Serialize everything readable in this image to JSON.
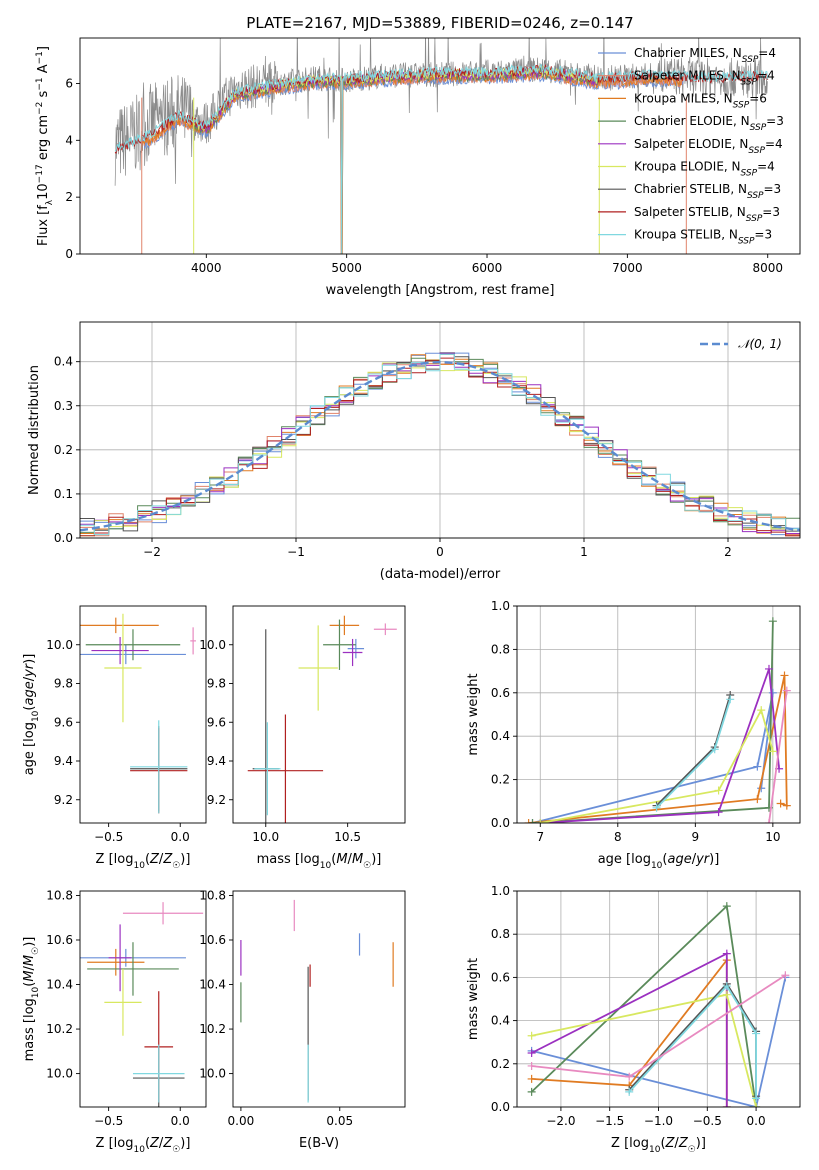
{
  "title": "PLATE=2167, MJD=53889, FIBERID=0246, z=0.147",
  "colors": {
    "chabrier_miles": "#6a8fd8",
    "salpeter_miles": "#e0836a",
    "kroupa_miles": "#e07b22",
    "chabrier_elodie": "#5a8a5a",
    "salpeter_elodie": "#9b30c0",
    "kroupa_elodie": "#d8e860",
    "chabrier_stelib": "#555555",
    "salpeter_stelib": "#b02020",
    "kroupa_stelib": "#80d8e0",
    "pink": "#e88ac0",
    "grey": "#8a8a8a",
    "normal": "#5b8bd0"
  },
  "legend": {
    "spectrum": [
      {
        "label": "Chabrier MILES, N",
        "sub": "SSP",
        "tail": "=4",
        "color": "#6a8fd8"
      },
      {
        "label": "Salpeter MILES, N",
        "sub": "SSP",
        "tail": "=4",
        "color": "#e0836a"
      },
      {
        "label": "Kroupa MILES, N",
        "sub": "SSP",
        "tail": "=6",
        "color": "#e07b22"
      },
      {
        "label": "Chabrier ELODIE, N",
        "sub": "SSP",
        "tail": "=3",
        "color": "#5a8a5a"
      },
      {
        "label": "Salpeter ELODIE, N",
        "sub": "SSP",
        "tail": "=4",
        "color": "#9b30c0"
      },
      {
        "label": "Kroupa ELODIE, N",
        "sub": "SSP",
        "tail": "=4",
        "color": "#d8e860"
      },
      {
        "label": "Chabrier STELIB, N",
        "sub": "SSP",
        "tail": "=3",
        "color": "#555555"
      },
      {
        "label": "Salpeter STELIB, N",
        "sub": "SSP",
        "tail": "=3",
        "color": "#b02020"
      },
      {
        "label": "Kroupa STELIB, N",
        "sub": "SSP",
        "tail": "=3",
        "color": "#80d8e0"
      }
    ],
    "histogram": "𝒩(0, 1)"
  },
  "chart_data": [
    {
      "id": "spectrum",
      "type": "line",
      "xlabel": "wavelength [Angstrom, rest frame]",
      "ylabel": "Flux [f_λ 10^-17 erg cm^-2 s^-1 A^-1]",
      "xlim": [
        3100,
        8230
      ],
      "ylim": [
        0,
        7.6
      ],
      "xticks": [
        4000,
        5000,
        6000,
        7000,
        8000
      ],
      "yticks": [
        0,
        2,
        4,
        6
      ],
      "series": [
        {
          "name": "data",
          "color": "#8a8a8a",
          "x": [
            3350,
            3500,
            3600,
            3800,
            4000,
            4200,
            4500,
            4800,
            5000,
            5300,
            5600,
            6000,
            6400,
            6800,
            7200,
            7600,
            8000
          ],
          "y": [
            3.8,
            4.2,
            4.6,
            5.0,
            4.6,
            5.8,
            6.0,
            6.2,
            6.1,
            6.3,
            6.3,
            6.4,
            6.5,
            6.2,
            6.3,
            6.2,
            6.2
          ]
        },
        {
          "name": "model",
          "color": "#80d8e0",
          "x": [
            3350,
            3500,
            3600,
            3800,
            4000,
            4200,
            4500,
            4800,
            5000,
            5300,
            5600,
            6000,
            6400,
            6800,
            7200,
            7600,
            8000
          ],
          "y": [
            3.6,
            3.9,
            4.1,
            4.8,
            4.4,
            5.6,
            5.9,
            6.1,
            6.1,
            6.2,
            6.3,
            6.3,
            6.4,
            6.1,
            6.2,
            6.1,
            6.2
          ]
        }
      ]
    },
    {
      "id": "residuals",
      "type": "line",
      "xlabel": "(data-model)/error",
      "ylabel": "Normed distribution",
      "xlim": [
        -2.5,
        2.5
      ],
      "ylim": [
        0,
        0.49
      ],
      "xticks": [
        -2,
        -1,
        0,
        1,
        2
      ],
      "yticks": [
        0.0,
        0.1,
        0.2,
        0.3,
        0.4
      ],
      "grid": true,
      "normal_curve": {
        "mu": 0,
        "sigma": 1,
        "style": "dashed"
      }
    },
    {
      "id": "age_vs_Z",
      "type": "scatter",
      "xlabel": "Z [log10(Z/Z☉)]",
      "ylabel": "age  [log10(age/yr)]",
      "xlim": [
        -0.7,
        0.18
      ],
      "ylim": [
        9.08,
        10.2
      ],
      "xticks": [
        -0.5,
        0.0
      ],
      "yticks": [
        9.2,
        9.4,
        9.6,
        9.8,
        10.0
      ],
      "points": [
        {
          "x": -0.38,
          "y": 9.95,
          "xerr": 0.42,
          "yerr": 0.05,
          "color": "#6a8fd8"
        },
        {
          "x": -0.45,
          "y": 10.1,
          "xerr": 0.3,
          "yerr": 0.04,
          "color": "#e07b22"
        },
        {
          "x": -0.33,
          "y": 10.0,
          "xerr": 0.33,
          "yerr": 0.08,
          "color": "#5a8a5a"
        },
        {
          "x": -0.42,
          "y": 9.97,
          "xerr": 0.2,
          "yerr": 0.07,
          "color": "#9b30c0"
        },
        {
          "x": -0.4,
          "y": 9.88,
          "xerr": 0.13,
          "yerr": 0.28,
          "color": "#d8e860"
        },
        {
          "x": -0.15,
          "y": 9.36,
          "xerr": 0.2,
          "yerr": 0.22,
          "color": "#555555"
        },
        {
          "x": -0.15,
          "y": 9.35,
          "xerr": 0.2,
          "yerr": 0.22,
          "color": "#b02020"
        },
        {
          "x": -0.15,
          "y": 9.37,
          "xerr": 0.2,
          "yerr": 0.24,
          "color": "#80d8e0"
        },
        {
          "x": 0.09,
          "y": 10.02,
          "xerr": 0.02,
          "yerr": 0.07,
          "color": "#e88ac0"
        }
      ]
    },
    {
      "id": "age_vs_mass",
      "type": "scatter",
      "xlabel": "mass [log10(M/M☉)]",
      "ylabel": "",
      "xlim": [
        9.8,
        10.85
      ],
      "ylim": [
        9.08,
        10.2
      ],
      "xticks": [
        10.0,
        10.5
      ],
      "yticks": [
        9.2,
        9.4,
        9.6,
        9.8,
        10.0
      ],
      "points": [
        {
          "x": 10.55,
          "y": 9.98,
          "xerr": 0.05,
          "yerr": 0.05,
          "color": "#6a8fd8"
        },
        {
          "x": 10.48,
          "y": 10.1,
          "xerr": 0.09,
          "yerr": 0.05,
          "color": "#e07b22"
        },
        {
          "x": 10.45,
          "y": 10.0,
          "xerr": 0.1,
          "yerr": 0.13,
          "color": "#5a8a5a"
        },
        {
          "x": 10.53,
          "y": 9.96,
          "xerr": 0.06,
          "yerr": 0.07,
          "color": "#9b30c0"
        },
        {
          "x": 10.32,
          "y": 9.88,
          "xerr": 0.12,
          "yerr": 0.22,
          "color": "#d8e860"
        },
        {
          "x": 10.0,
          "y": 9.36,
          "xerr": 0.08,
          "yerr": 0.72,
          "color": "#555555"
        },
        {
          "x": 10.12,
          "y": 9.35,
          "xerr": 0.23,
          "yerr": 0.29,
          "color": "#b02020"
        },
        {
          "x": 10.01,
          "y": 9.36,
          "xerr": 0.08,
          "yerr": 0.24,
          "color": "#80d8e0"
        },
        {
          "x": 10.73,
          "y": 10.08,
          "xerr": 0.07,
          "yerr": 0.03,
          "color": "#e88ac0"
        }
      ]
    },
    {
      "id": "massweight_vs_age",
      "type": "line",
      "xlabel": "age  [log10(age/yr)]",
      "ylabel": "mass weight",
      "xlim": [
        6.7,
        10.35
      ],
      "ylim": [
        0,
        1.0
      ],
      "xticks": [
        7,
        8,
        9,
        10
      ],
      "yticks": [
        0.0,
        0.2,
        0.4,
        0.6,
        0.8,
        1.0
      ],
      "grid": true,
      "series": [
        {
          "color": "#6a8fd8",
          "x": [
            6.9,
            9.8,
            10.0,
            9.85
          ],
          "y": [
            0.0,
            0.26,
            0.6,
            0.16
          ]
        },
        {
          "color": "#e07b22",
          "x": [
            6.85,
            9.8,
            10.15,
            10.18,
            10.1
          ],
          "y": [
            0.0,
            0.11,
            0.68,
            0.08,
            0.09
          ]
        },
        {
          "color": "#5a8a5a",
          "x": [
            6.9,
            9.95,
            10.0
          ],
          "y": [
            0.0,
            0.07,
            0.93
          ]
        },
        {
          "color": "#9b30c0",
          "x": [
            7.0,
            9.3,
            9.95,
            10.08
          ],
          "y": [
            0.0,
            0.05,
            0.71,
            0.25
          ]
        },
        {
          "color": "#d8e860",
          "x": [
            7.0,
            9.3,
            9.85,
            10.0
          ],
          "y": [
            0.0,
            0.15,
            0.52,
            0.33
          ]
        },
        {
          "color": "#555555",
          "x": [
            8.5,
            9.25,
            9.45
          ],
          "y": [
            0.08,
            0.35,
            0.59
          ]
        },
        {
          "color": "#80d8e0",
          "x": [
            8.5,
            9.25,
            9.45
          ],
          "y": [
            0.07,
            0.34,
            0.57
          ]
        },
        {
          "color": "#e88ac0",
          "x": [
            9.95,
            10.18
          ],
          "y": [
            0.0,
            0.61
          ]
        }
      ]
    },
    {
      "id": "mass_vs_Z",
      "type": "scatter",
      "xlabel": "Z [log10(Z/Z☉)]",
      "ylabel": "mass [log10(M/M☉)]",
      "xlim": [
        -0.7,
        0.18
      ],
      "ylim": [
        9.85,
        10.82
      ],
      "xticks": [
        -0.5,
        0.0
      ],
      "yticks": [
        10.0,
        10.2,
        10.4,
        10.6,
        10.8
      ],
      "points": [
        {
          "x": -0.38,
          "y": 10.52,
          "xerr": 0.42,
          "yerr": 0.04,
          "color": "#6a8fd8"
        },
        {
          "x": -0.45,
          "y": 10.5,
          "xerr": 0.2,
          "yerr": 0.06,
          "color": "#e07b22"
        },
        {
          "x": -0.33,
          "y": 10.47,
          "xerr": 0.32,
          "yerr": 0.12,
          "color": "#5a8a5a"
        },
        {
          "x": -0.42,
          "y": 10.52,
          "xerr": 0.08,
          "yerr": 0.15,
          "color": "#9b30c0"
        },
        {
          "x": -0.4,
          "y": 10.32,
          "xerr": 0.13,
          "yerr": 0.15,
          "color": "#d8e860"
        },
        {
          "x": -0.15,
          "y": 9.98,
          "xerr": 0.18,
          "yerr": 0.15,
          "color": "#555555"
        },
        {
          "x": -0.15,
          "y": 10.12,
          "xerr": 0.1,
          "yerr": 0.25,
          "color": "#b02020"
        },
        {
          "x": -0.15,
          "y": 10.0,
          "xerr": 0.18,
          "yerr": 0.13,
          "color": "#80d8e0"
        },
        {
          "x": -0.12,
          "y": 10.72,
          "xerr": 0.28,
          "yerr": 0.05,
          "color": "#e88ac0"
        }
      ]
    },
    {
      "id": "mass_vs_ebv",
      "type": "scatter",
      "xlabel": "E(B-V)",
      "ylabel": "",
      "xlim": [
        -0.004,
        0.083
      ],
      "ylim": [
        9.85,
        10.82
      ],
      "xticks": [
        0.0,
        0.05
      ],
      "yticks": [
        10.0,
        10.2,
        10.4,
        10.6,
        10.8
      ],
      "points": [
        {
          "x": 0.06,
          "y": 10.58,
          "xerr": 0,
          "yerr": 0.05,
          "color": "#6a8fd8"
        },
        {
          "x": 0.077,
          "y": 10.49,
          "xerr": 0,
          "yerr": 0.1,
          "color": "#e07b22"
        },
        {
          "x": 0.0,
          "y": 10.32,
          "xerr": 0,
          "yerr": 0.09,
          "color": "#5a8a5a"
        },
        {
          "x": 0.0,
          "y": 10.52,
          "xerr": 0,
          "yerr": 0.08,
          "color": "#9b30c0"
        },
        {
          "x": 0.034,
          "y": 10.18,
          "xerr": 0,
          "yerr": 0.3,
          "color": "#555555"
        },
        {
          "x": 0.035,
          "y": 10.44,
          "xerr": 0,
          "yerr": 0.05,
          "color": "#b02020"
        },
        {
          "x": 0.034,
          "y": 10.0,
          "xerr": 0,
          "yerr": 0.13,
          "color": "#80d8e0"
        },
        {
          "x": 0.027,
          "y": 10.71,
          "xerr": 0,
          "yerr": 0.07,
          "color": "#e88ac0"
        }
      ]
    },
    {
      "id": "massweight_vs_Z",
      "type": "line",
      "xlabel": "Z [log10(Z/Z☉)]",
      "ylabel": "mass weight",
      "xlim": [
        -2.45,
        0.45
      ],
      "ylim": [
        0,
        1.0
      ],
      "xticks": [
        -2.0,
        -1.5,
        -1.0,
        -0.5,
        0.0
      ],
      "yticks": [
        0.0,
        0.2,
        0.4,
        0.6,
        0.8,
        1.0
      ],
      "grid": true,
      "series": [
        {
          "color": "#6a8fd8",
          "x": [
            -2.3,
            0.0,
            0.3
          ],
          "y": [
            0.26,
            0.0,
            0.6
          ]
        },
        {
          "color": "#e07b22",
          "x": [
            -2.3,
            -1.3,
            -0.3,
            -0.3
          ],
          "y": [
            0.13,
            0.1,
            0.68,
            0.0
          ]
        },
        {
          "color": "#5a8a5a",
          "x": [
            -2.3,
            -0.3,
            0.0
          ],
          "y": [
            0.07,
            0.93,
            0.0
          ]
        },
        {
          "color": "#9b30c0",
          "x": [
            -2.3,
            -0.3,
            -0.3
          ],
          "y": [
            0.25,
            0.71,
            0.0
          ]
        },
        {
          "color": "#d8e860",
          "x": [
            -2.3,
            -0.3,
            0.0
          ],
          "y": [
            0.33,
            0.52,
            0.0
          ]
        },
        {
          "color": "#555555",
          "x": [
            -1.3,
            -0.3,
            0.0,
            0.0
          ],
          "y": [
            0.08,
            0.57,
            0.35,
            0.05
          ]
        },
        {
          "color": "#80d8e0",
          "x": [
            -1.3,
            -0.3,
            0.0,
            0.0
          ],
          "y": [
            0.07,
            0.56,
            0.34,
            0.04
          ]
        },
        {
          "color": "#e88ac0",
          "x": [
            -2.3,
            -1.3,
            0.3
          ],
          "y": [
            0.19,
            0.14,
            0.61
          ]
        }
      ]
    }
  ]
}
